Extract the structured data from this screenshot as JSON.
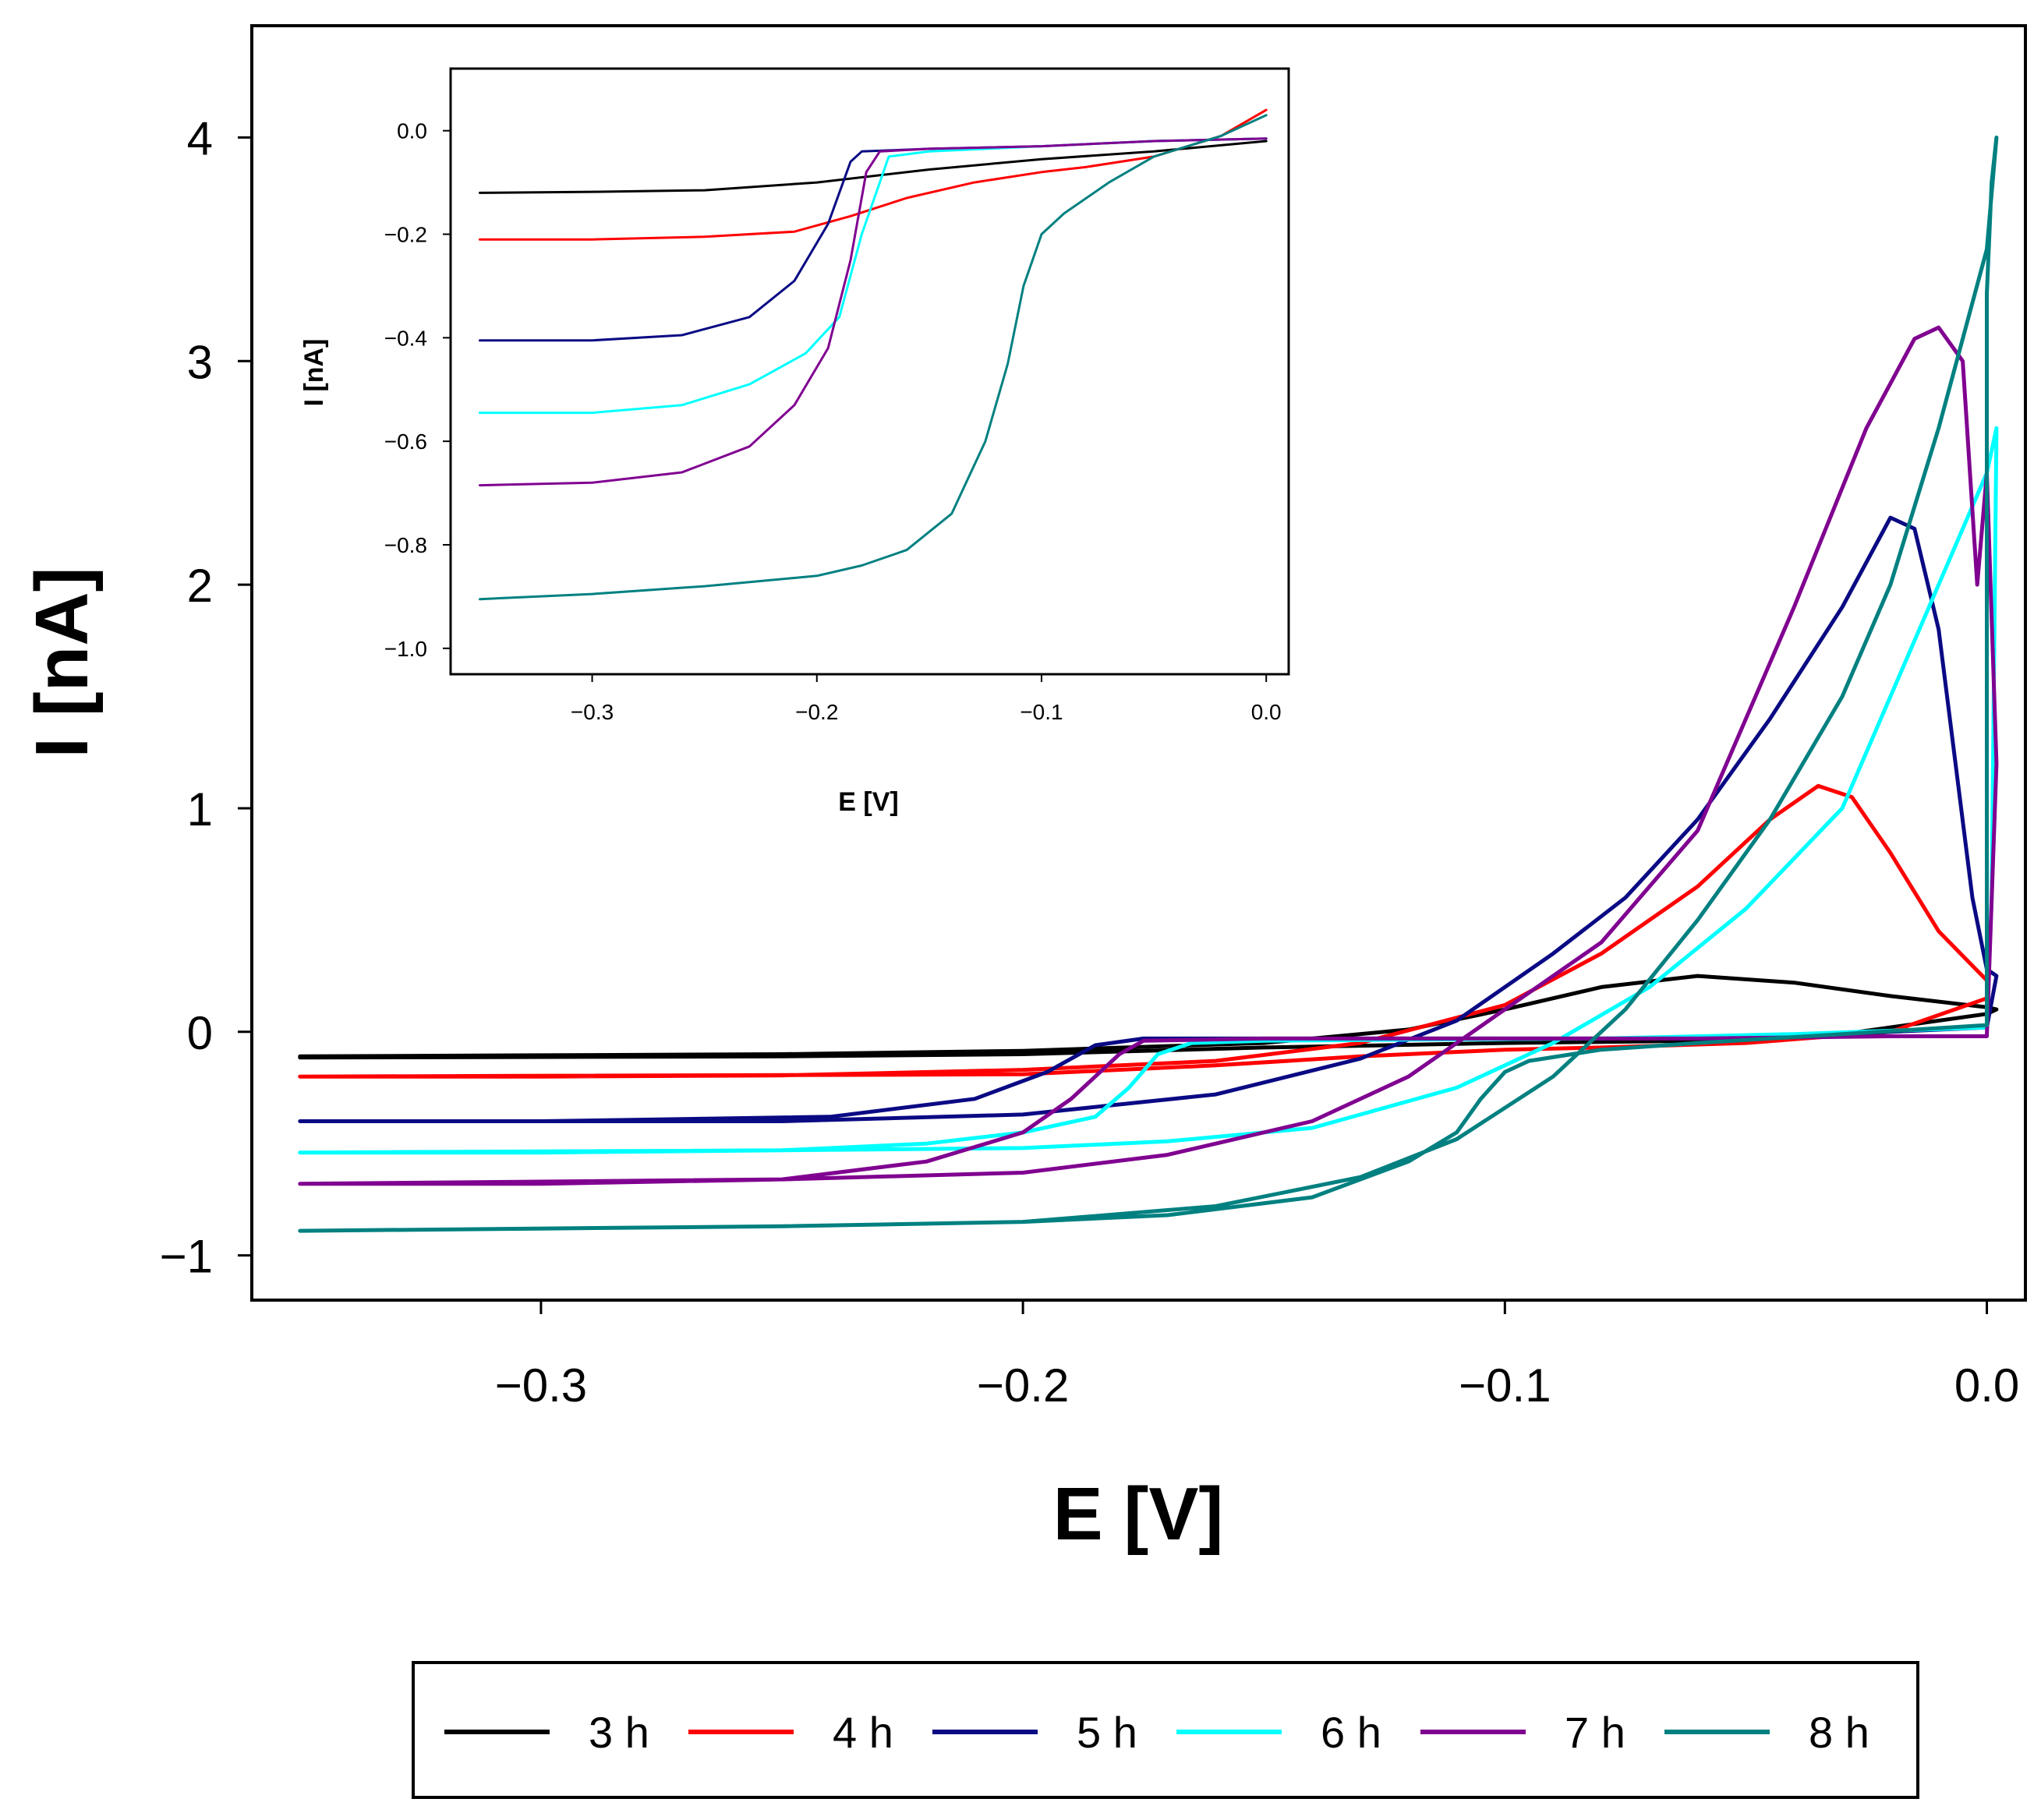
{
  "chart_data": [
    {
      "id": "main",
      "type": "line",
      "title": "",
      "xlabel": "E [V]",
      "ylabel": "I [nA]",
      "xlim": [
        -0.36,
        0.008
      ],
      "ylim": [
        -1.2,
        4.5
      ],
      "xticks": [
        -0.3,
        -0.2,
        -0.1,
        0.0
      ],
      "xtick_labels": [
        "−0.3",
        "−0.2",
        "−0.1",
        "0.0"
      ],
      "yticks": [
        -1,
        0,
        1,
        2,
        3,
        4
      ],
      "ytick_labels": [
        "−1",
        "0",
        "1",
        "2",
        "3",
        "4"
      ],
      "grid": false,
      "series": [
        {
          "name": "3 h",
          "color": "#000000",
          "points": [
            [
              -0.35,
              -0.11
            ],
            [
              -0.3,
              -0.105
            ],
            [
              -0.25,
              -0.1
            ],
            [
              -0.2,
              -0.085
            ],
            [
              -0.15,
              -0.05
            ],
            [
              -0.12,
              0.01
            ],
            [
              -0.1,
              0.1
            ],
            [
              -0.08,
              0.2
            ],
            [
              -0.06,
              0.25
            ],
            [
              -0.04,
              0.22
            ],
            [
              -0.02,
              0.16
            ],
            [
              0.0,
              0.11
            ],
            [
              0.002,
              0.1
            ],
            [
              0.0,
              0.08
            ],
            [
              -0.03,
              -0.01
            ],
            [
              -0.06,
              -0.04
            ],
            [
              -0.1,
              -0.05
            ],
            [
              -0.15,
              -0.07
            ],
            [
              -0.2,
              -0.1
            ],
            [
              -0.25,
              -0.11
            ],
            [
              -0.35,
              -0.115
            ]
          ]
        },
        {
          "name": "4 h",
          "color": "#ff0000",
          "points": [
            [
              -0.35,
              -0.2
            ],
            [
              -0.3,
              -0.2
            ],
            [
              -0.25,
              -0.195
            ],
            [
              -0.2,
              -0.17
            ],
            [
              -0.16,
              -0.13
            ],
            [
              -0.13,
              -0.05
            ],
            [
              -0.1,
              0.12
            ],
            [
              -0.08,
              0.35
            ],
            [
              -0.06,
              0.65
            ],
            [
              -0.045,
              0.95
            ],
            [
              -0.035,
              1.1
            ],
            [
              -0.028,
              1.05
            ],
            [
              -0.02,
              0.8
            ],
            [
              -0.01,
              0.45
            ],
            [
              0.0,
              0.23
            ],
            [
              0.0,
              0.15
            ],
            [
              -0.02,
              0.0
            ],
            [
              -0.05,
              -0.05
            ],
            [
              -0.08,
              -0.07
            ],
            [
              -0.1,
              -0.08
            ],
            [
              -0.13,
              -0.11
            ],
            [
              -0.16,
              -0.15
            ],
            [
              -0.2,
              -0.19
            ],
            [
              -0.35,
              -0.2
            ]
          ]
        },
        {
          "name": "5 h",
          "color": "#0a0a84",
          "points": [
            [
              -0.35,
              -0.4
            ],
            [
              -0.3,
              -0.4
            ],
            [
              -0.24,
              -0.38
            ],
            [
              -0.21,
              -0.3
            ],
            [
              -0.195,
              -0.18
            ],
            [
              -0.185,
              -0.06
            ],
            [
              -0.175,
              -0.03
            ],
            [
              -0.15,
              -0.03
            ],
            [
              -0.12,
              -0.03
            ],
            [
              -0.08,
              -0.03
            ],
            [
              -0.04,
              -0.02
            ],
            [
              0.0,
              0.02
            ],
            [
              0.002,
              0.25
            ],
            [
              0.0,
              0.28
            ],
            [
              -0.003,
              0.6
            ],
            [
              -0.01,
              1.8
            ],
            [
              -0.015,
              2.25
            ],
            [
              -0.02,
              2.3
            ],
            [
              -0.03,
              1.9
            ],
            [
              -0.045,
              1.4
            ],
            [
              -0.06,
              0.95
            ],
            [
              -0.075,
              0.6
            ],
            [
              -0.09,
              0.35
            ],
            [
              -0.11,
              0.05
            ],
            [
              -0.13,
              -0.12
            ],
            [
              -0.16,
              -0.28
            ],
            [
              -0.2,
              -0.37
            ],
            [
              -0.25,
              -0.4
            ],
            [
              -0.35,
              -0.4
            ]
          ]
        },
        {
          "name": "6 h",
          "color": "#00ffff",
          "points": [
            [
              -0.35,
              -0.54
            ],
            [
              -0.3,
              -0.54
            ],
            [
              -0.25,
              -0.53
            ],
            [
              -0.22,
              -0.5
            ],
            [
              -0.2,
              -0.45
            ],
            [
              -0.185,
              -0.38
            ],
            [
              -0.178,
              -0.25
            ],
            [
              -0.172,
              -0.1
            ],
            [
              -0.165,
              -0.05
            ],
            [
              -0.15,
              -0.04
            ],
            [
              -0.12,
              -0.035
            ],
            [
              -0.08,
              -0.03
            ],
            [
              -0.04,
              -0.01
            ],
            [
              0.0,
              0.02
            ],
            [
              0.001,
              0.6
            ],
            [
              0.002,
              2.7
            ],
            [
              0.0,
              2.5
            ],
            [
              -0.01,
              2.0
            ],
            [
              -0.03,
              1.0
            ],
            [
              -0.05,
              0.55
            ],
            [
              -0.07,
              0.2
            ],
            [
              -0.09,
              -0.05
            ],
            [
              -0.11,
              -0.25
            ],
            [
              -0.14,
              -0.43
            ],
            [
              -0.17,
              -0.49
            ],
            [
              -0.2,
              -0.52
            ],
            [
              -0.25,
              -0.53
            ],
            [
              -0.35,
              -0.54
            ]
          ]
        },
        {
          "name": "7 h",
          "color": "#800090",
          "points": [
            [
              -0.35,
              -0.68
            ],
            [
              -0.3,
              -0.68
            ],
            [
              -0.25,
              -0.66
            ],
            [
              -0.22,
              -0.58
            ],
            [
              -0.2,
              -0.45
            ],
            [
              -0.19,
              -0.3
            ],
            [
              -0.18,
              -0.1
            ],
            [
              -0.175,
              -0.04
            ],
            [
              -0.15,
              -0.03
            ],
            [
              -0.1,
              -0.03
            ],
            [
              -0.06,
              -0.03
            ],
            [
              -0.02,
              -0.02
            ],
            [
              0.0,
              -0.02
            ],
            [
              0.002,
              1.2
            ],
            [
              0.0,
              2.5
            ],
            [
              -0.002,
              2.0
            ],
            [
              -0.005,
              3.0
            ],
            [
              -0.01,
              3.15
            ],
            [
              -0.015,
              3.1
            ],
            [
              -0.025,
              2.7
            ],
            [
              -0.04,
              1.9
            ],
            [
              -0.06,
              0.9
            ],
            [
              -0.08,
              0.4
            ],
            [
              -0.1,
              0.1
            ],
            [
              -0.12,
              -0.2
            ],
            [
              -0.14,
              -0.4
            ],
            [
              -0.17,
              -0.55
            ],
            [
              -0.2,
              -0.63
            ],
            [
              -0.25,
              -0.66
            ],
            [
              -0.35,
              -0.68
            ]
          ]
        },
        {
          "name": "8 h",
          "color": "#008080",
          "points": [
            [
              -0.35,
              -0.89
            ],
            [
              -0.3,
              -0.88
            ],
            [
              -0.25,
              -0.87
            ],
            [
              -0.2,
              -0.85
            ],
            [
              -0.17,
              -0.82
            ],
            [
              -0.14,
              -0.74
            ],
            [
              -0.12,
              -0.58
            ],
            [
              -0.11,
              -0.45
            ],
            [
              -0.105,
              -0.3
            ],
            [
              -0.1,
              -0.18
            ],
            [
              -0.095,
              -0.13
            ],
            [
              -0.08,
              -0.08
            ],
            [
              -0.06,
              -0.05
            ],
            [
              -0.03,
              -0.01
            ],
            [
              0.0,
              0.03
            ],
            [
              0.0,
              3.3
            ],
            [
              0.001,
              3.8
            ],
            [
              0.002,
              4.0
            ],
            [
              0.0,
              3.5
            ],
            [
              -0.01,
              2.7
            ],
            [
              -0.02,
              2.0
            ],
            [
              -0.03,
              1.5
            ],
            [
              -0.045,
              0.95
            ],
            [
              -0.06,
              0.5
            ],
            [
              -0.075,
              0.1
            ],
            [
              -0.09,
              -0.2
            ],
            [
              -0.11,
              -0.48
            ],
            [
              -0.13,
              -0.65
            ],
            [
              -0.16,
              -0.78
            ],
            [
              -0.2,
              -0.85
            ],
            [
              -0.25,
              -0.87
            ],
            [
              -0.35,
              -0.89
            ]
          ]
        }
      ]
    },
    {
      "id": "inset",
      "type": "line",
      "title": "",
      "xlabel": "E [V]",
      "ylabel": "I [nA]",
      "xlim": [
        -0.363,
        0.01
      ],
      "ylim": [
        -1.05,
        0.12
      ],
      "xticks": [
        -0.3,
        -0.2,
        -0.1,
        0.0
      ],
      "xtick_labels": [
        "−0.3",
        "−0.2",
        "−0.1",
        "0.0"
      ],
      "yticks": [
        -1.0,
        -0.8,
        -0.6,
        -0.4,
        -0.2,
        0.0
      ],
      "ytick_labels": [
        "−1.0",
        "−0.8",
        "−0.6",
        "−0.4",
        "−0.2",
        "0.0"
      ],
      "grid": false,
      "series": [
        {
          "name": "3 h",
          "color": "#000000",
          "points": [
            [
              -0.35,
              -0.12
            ],
            [
              -0.3,
              -0.118
            ],
            [
              -0.25,
              -0.115
            ],
            [
              -0.2,
              -0.1
            ],
            [
              -0.15,
              -0.075
            ],
            [
              -0.1,
              -0.055
            ],
            [
              -0.05,
              -0.04
            ],
            [
              0.0,
              -0.02
            ]
          ]
        },
        {
          "name": "4 h",
          "color": "#ff0000",
          "points": [
            [
              -0.35,
              -0.21
            ],
            [
              -0.3,
              -0.21
            ],
            [
              -0.25,
              -0.205
            ],
            [
              -0.21,
              -0.195
            ],
            [
              -0.185,
              -0.165
            ],
            [
              -0.16,
              -0.13
            ],
            [
              -0.13,
              -0.1
            ],
            [
              -0.1,
              -0.08
            ],
            [
              -0.08,
              -0.07
            ],
            [
              -0.05,
              -0.05
            ],
            [
              -0.02,
              -0.01
            ],
            [
              0.0,
              0.04
            ]
          ]
        },
        {
          "name": "5 h",
          "color": "#0a0a84",
          "points": [
            [
              -0.35,
              -0.405
            ],
            [
              -0.3,
              -0.405
            ],
            [
              -0.26,
              -0.395
            ],
            [
              -0.23,
              -0.36
            ],
            [
              -0.21,
              -0.29
            ],
            [
              -0.195,
              -0.18
            ],
            [
              -0.185,
              -0.06
            ],
            [
              -0.18,
              -0.04
            ],
            [
              -0.15,
              -0.035
            ],
            [
              -0.1,
              -0.03
            ],
            [
              -0.05,
              -0.02
            ],
            [
              0.0,
              -0.015
            ]
          ]
        },
        {
          "name": "6 h",
          "color": "#00ffff",
          "points": [
            [
              -0.35,
              -0.545
            ],
            [
              -0.3,
              -0.545
            ],
            [
              -0.26,
              -0.53
            ],
            [
              -0.23,
              -0.49
            ],
            [
              -0.205,
              -0.43
            ],
            [
              -0.19,
              -0.36
            ],
            [
              -0.18,
              -0.2
            ],
            [
              -0.172,
              -0.1
            ],
            [
              -0.168,
              -0.05
            ],
            [
              -0.15,
              -0.04
            ],
            [
              -0.1,
              -0.03
            ],
            [
              -0.05,
              -0.02
            ],
            [
              0.0,
              -0.015
            ]
          ]
        },
        {
          "name": "7 h",
          "color": "#800090",
          "points": [
            [
              -0.35,
              -0.685
            ],
            [
              -0.3,
              -0.68
            ],
            [
              -0.26,
              -0.66
            ],
            [
              -0.23,
              -0.61
            ],
            [
              -0.21,
              -0.53
            ],
            [
              -0.195,
              -0.42
            ],
            [
              -0.185,
              -0.25
            ],
            [
              -0.178,
              -0.08
            ],
            [
              -0.172,
              -0.04
            ],
            [
              -0.15,
              -0.035
            ],
            [
              -0.1,
              -0.03
            ],
            [
              -0.05,
              -0.02
            ],
            [
              0.0,
              -0.015
            ]
          ]
        },
        {
          "name": "8 h",
          "color": "#008080",
          "points": [
            [
              -0.35,
              -0.905
            ],
            [
              -0.3,
              -0.895
            ],
            [
              -0.25,
              -0.88
            ],
            [
              -0.2,
              -0.86
            ],
            [
              -0.18,
              -0.84
            ],
            [
              -0.16,
              -0.81
            ],
            [
              -0.14,
              -0.74
            ],
            [
              -0.125,
              -0.6
            ],
            [
              -0.115,
              -0.45
            ],
            [
              -0.108,
              -0.3
            ],
            [
              -0.1,
              -0.2
            ],
            [
              -0.09,
              -0.16
            ],
            [
              -0.07,
              -0.1
            ],
            [
              -0.05,
              -0.05
            ],
            [
              -0.02,
              -0.01
            ],
            [
              0.0,
              0.03
            ]
          ]
        }
      ]
    }
  ],
  "legend": {
    "placement": "bottom",
    "entries": [
      {
        "label": "3 h",
        "color": "#000000"
      },
      {
        "label": "4 h",
        "color": "#ff0000"
      },
      {
        "label": "5 h",
        "color": "#0a0a84"
      },
      {
        "label": "6 h",
        "color": "#00ffff"
      },
      {
        "label": "7 h",
        "color": "#800090"
      },
      {
        "label": "8 h",
        "color": "#008080"
      }
    ]
  }
}
